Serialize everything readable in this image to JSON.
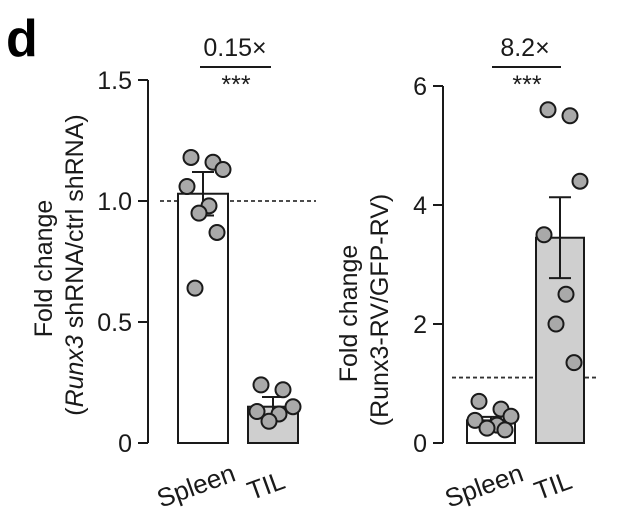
{
  "panel_label": "d",
  "chart_data": [
    {
      "type": "bar",
      "categories": [
        "Spleen",
        "TIL"
      ],
      "values": [
        1.03,
        0.15
      ],
      "errors": [
        0.09,
        0.04
      ],
      "bar_colors": [
        "#ffffff",
        "#cfcfcf"
      ],
      "points": [
        [
          1.18,
          1.16,
          1.13,
          1.06,
          0.98,
          0.95,
          0.87,
          0.64
        ],
        [
          0.24,
          0.22,
          0.15,
          0.13,
          0.12,
          0.09
        ]
      ],
      "ylim": [
        0,
        1.5
      ],
      "yticks": [
        0,
        0.5,
        1.0,
        1.5
      ],
      "ytick_labels": [
        "0",
        "0.5",
        "1.0",
        "1.5"
      ],
      "reference_line": 1.0,
      "ylabel_line1": "Fold change",
      "ylabel_line2_italic": "Runx3",
      "ylabel_line2_rest": " shRNA/ctrl shRNA)",
      "ylabel_line2_open": "(",
      "annotation_fold": "0.15×",
      "annotation_sig": "***"
    },
    {
      "type": "bar",
      "categories": [
        "Spleen",
        "TIL"
      ],
      "values": [
        0.38,
        3.45
      ],
      "errors": [
        0.06,
        0.68
      ],
      "bar_colors": [
        "#ffffff",
        "#cfcfcf"
      ],
      "points": [
        [
          0.7,
          0.57,
          0.45,
          0.38,
          0.3,
          0.25,
          0.22
        ],
        [
          5.6,
          5.5,
          4.4,
          3.5,
          2.5,
          2.0,
          1.35
        ]
      ],
      "ylim": [
        0,
        6
      ],
      "yticks": [
        0,
        2,
        4,
        6
      ],
      "ytick_labels": [
        "0",
        "2",
        "4",
        "6"
      ],
      "reference_line": 1.1,
      "ylabel_line1": "Fold change",
      "ylabel_line2": "(Runx3-RV/GFP-RV)",
      "annotation_fold": "8.2×",
      "annotation_sig": "***"
    }
  ]
}
